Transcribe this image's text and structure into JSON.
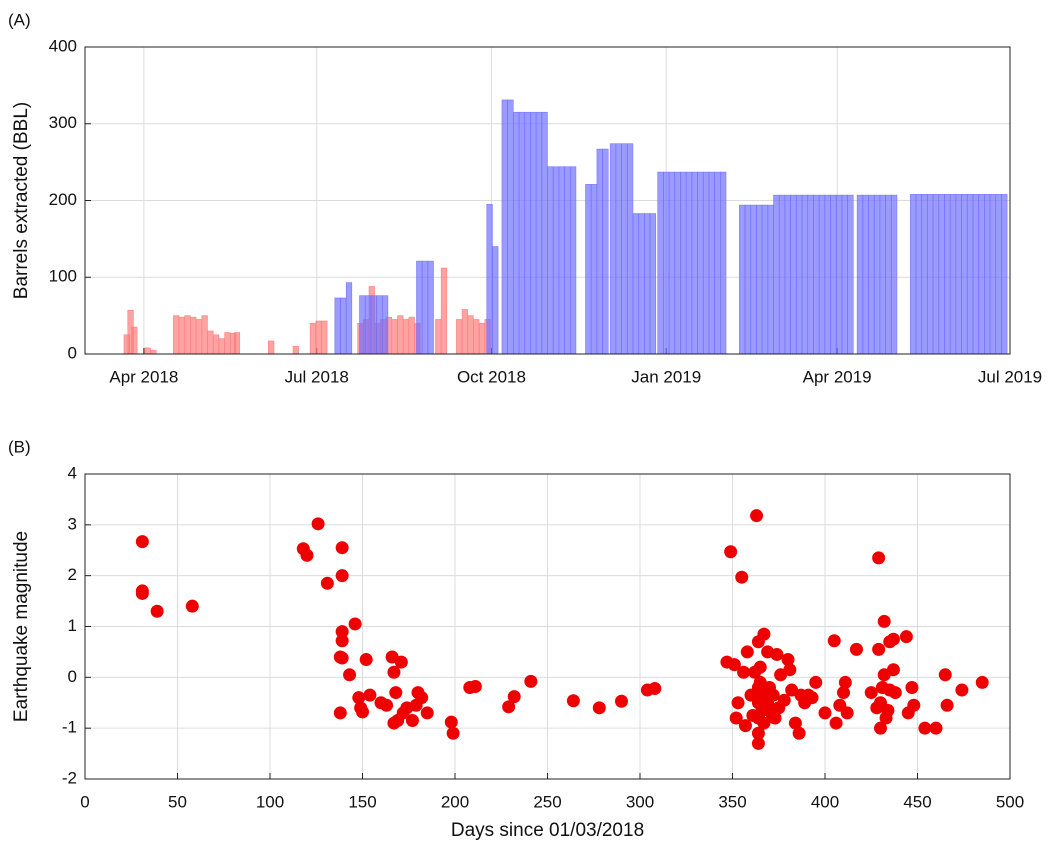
{
  "chart_data": [
    {
      "type": "bar",
      "label": "(A)",
      "ylabel": "Barrels extracted (BBL)",
      "xlim": [
        0,
        487
      ],
      "xticks": [
        {
          "value": 31,
          "label": "Apr 2018"
        },
        {
          "value": 122,
          "label": "Jul 2018"
        },
        {
          "value": 214,
          "label": "Oct 2018"
        },
        {
          "value": 306,
          "label": "Jan 2019"
        },
        {
          "value": 396,
          "label": "Apr 2019"
        },
        {
          "value": 487,
          "label": "Jul 2019"
        }
      ],
      "ylim": [
        0,
        400
      ],
      "yticks": [
        0,
        100,
        200,
        300,
        400
      ],
      "grid": true,
      "series": [
        {
          "color": "#ff7a7a",
          "x": [
            22,
            24,
            26,
            33,
            36,
            48,
            51,
            54,
            57,
            60,
            63,
            66,
            69,
            72,
            75,
            78,
            80,
            98,
            111,
            120,
            123,
            126,
            145,
            148,
            151,
            154,
            157,
            160,
            163,
            166,
            169,
            172,
            175,
            186,
            189,
            197,
            200,
            203,
            206,
            209,
            212
          ],
          "values": [
            25,
            57,
            35,
            8,
            5,
            50,
            48,
            50,
            48,
            45,
            50,
            30,
            25,
            20,
            28,
            27,
            28,
            17,
            10,
            40,
            43,
            43,
            40,
            45,
            88,
            40,
            45,
            48,
            45,
            50,
            45,
            48,
            40,
            45,
            112,
            45,
            58,
            50,
            45,
            40,
            45
          ]
        },
        {
          "color": "#6f6fff",
          "x": [
            133,
            136,
            139,
            146,
            149,
            152,
            155,
            158,
            176,
            179,
            182,
            213,
            216,
            221,
            224,
            227,
            230,
            233,
            236,
            239,
            242,
            245,
            248,
            251,
            254,
            257,
            265,
            268,
            271,
            274,
            278,
            281,
            284,
            287,
            290,
            293,
            296,
            299,
            303,
            306,
            309,
            312,
            315,
            318,
            321,
            324,
            327,
            330,
            333,
            336,
            346,
            349,
            352,
            355,
            358,
            361,
            364,
            367,
            370,
            373,
            376,
            379,
            382,
            385,
            388,
            391,
            394,
            397,
            400,
            403,
            408,
            411,
            414,
            417,
            420,
            423,
            426,
            436,
            439,
            442,
            445,
            448,
            451,
            454,
            457,
            460,
            463,
            466,
            469,
            472,
            475,
            478,
            481,
            484
          ],
          "values": [
            73,
            73,
            93,
            76,
            76,
            76,
            76,
            76,
            121,
            121,
            121,
            195,
            140,
            331,
            331,
            315,
            315,
            315,
            315,
            315,
            315,
            244,
            244,
            244,
            244,
            244,
            221,
            221,
            267,
            267,
            274,
            274,
            274,
            274,
            183,
            183,
            183,
            183,
            237,
            237,
            237,
            237,
            237,
            237,
            237,
            237,
            237,
            237,
            237,
            237,
            194,
            194,
            194,
            194,
            194,
            194,
            207,
            207,
            207,
            207,
            207,
            207,
            207,
            207,
            207,
            207,
            207,
            207,
            207,
            207,
            207,
            207,
            207,
            207,
            207,
            207,
            207,
            208,
            208,
            208,
            208,
            208,
            208,
            208,
            208,
            208,
            208,
            208,
            208,
            208,
            208,
            208,
            208,
            208
          ]
        }
      ]
    },
    {
      "type": "scatter",
      "label": "(B)",
      "xlabel": "Days since 01/03/2018",
      "ylabel": "Earthquake magnitude",
      "xlim": [
        0,
        500
      ],
      "xticks": [
        0,
        50,
        100,
        150,
        200,
        250,
        300,
        350,
        400,
        450,
        500
      ],
      "ylim": [
        -2,
        4
      ],
      "yticks": [
        -2,
        -1,
        0,
        1,
        2,
        3,
        4
      ],
      "grid": true,
      "color": "#ee0000",
      "x": [
        31,
        31,
        31,
        39,
        58,
        118,
        120,
        126,
        131,
        139,
        139,
        139,
        139,
        138,
        139,
        138,
        143,
        146,
        148,
        149,
        150,
        152,
        154,
        160,
        163,
        166,
        167,
        168,
        167,
        169,
        171,
        172,
        174,
        177,
        179,
        180,
        182,
        185,
        198,
        199,
        208,
        211,
        229,
        232,
        241,
        264,
        278,
        290,
        304,
        308,
        347,
        349,
        351,
        352,
        353,
        355,
        356,
        357,
        358,
        360,
        361,
        362,
        363,
        364,
        364,
        364,
        364,
        364,
        364,
        365,
        365,
        366,
        366,
        367,
        367,
        368,
        369,
        369,
        370,
        371,
        372,
        373,
        374,
        375,
        376,
        378,
        380,
        381,
        382,
        384,
        386,
        387,
        389,
        391,
        393,
        395,
        400,
        405,
        406,
        408,
        410,
        411,
        412,
        417,
        425,
        428,
        429,
        429,
        430,
        430,
        431,
        432,
        432,
        433,
        434,
        435,
        435,
        437,
        437,
        438,
        444,
        445,
        447,
        448,
        454,
        460,
        465,
        466,
        474,
        485
      ],
      "values": [
        2.67,
        1.7,
        1.65,
        1.3,
        1.4,
        2.53,
        2.4,
        3.02,
        1.85,
        2.55,
        2.0,
        0.9,
        0.72,
        0.4,
        0.38,
        -0.7,
        0.05,
        1.05,
        -0.4,
        -0.6,
        -0.68,
        0.35,
        -0.35,
        -0.5,
        -0.55,
        0.4,
        0.1,
        -0.3,
        -0.9,
        -0.85,
        0.3,
        -0.7,
        -0.6,
        -0.85,
        -0.55,
        -0.3,
        -0.4,
        -0.7,
        -0.88,
        -1.1,
        -0.2,
        -0.18,
        -0.58,
        -0.38,
        -0.08,
        -0.46,
        -0.6,
        -0.47,
        -0.25,
        -0.22,
        0.3,
        2.47,
        0.25,
        -0.8,
        -0.5,
        1.97,
        0.1,
        -0.95,
        0.5,
        -0.35,
        -0.75,
        0.1,
        3.18,
        0.7,
        -0.2,
        -0.5,
        -0.8,
        -1.1,
        -1.3,
        0.2,
        -0.1,
        -0.4,
        -0.65,
        0.85,
        -0.9,
        -0.3,
        0.5,
        -0.5,
        -0.2,
        -0.7,
        -0.35,
        -0.8,
        0.45,
        -0.6,
        0.05,
        -0.45,
        0.35,
        0.15,
        -0.25,
        -0.9,
        -1.1,
        -0.35,
        -0.5,
        -0.35,
        -0.4,
        -0.1,
        -0.7,
        0.72,
        -0.9,
        -0.55,
        -0.3,
        -0.1,
        -0.7,
        0.55,
        -0.3,
        -0.6,
        2.35,
        0.55,
        -1.0,
        -0.5,
        -0.2,
        1.1,
        0.05,
        -0.8,
        -0.65,
        -0.25,
        0.7,
        0.75,
        0.15,
        -0.3,
        0.8,
        -0.7,
        -0.2,
        -0.55,
        -1.0,
        -1.0,
        0.05,
        -0.55,
        -0.25,
        -0.1
      ]
    }
  ]
}
